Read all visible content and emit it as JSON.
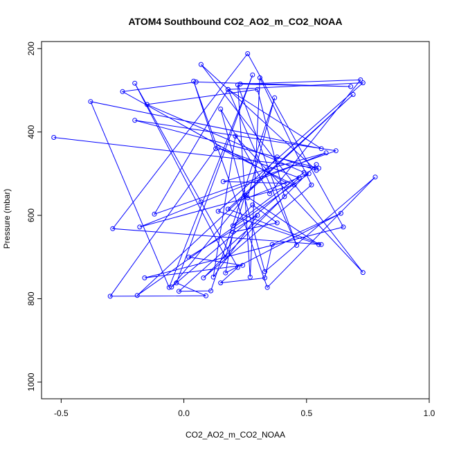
{
  "chart_data": {
    "type": "line",
    "title": "ATOM4 Southbound CO2_AO2_m_CO2_NOAA",
    "xlabel": "CO2_AO2_m_CO2_NOAA",
    "ylabel": "Pressure (mbar)",
    "xlim": [
      -0.58,
      1.0
    ],
    "ylim": [
      1040,
      183
    ],
    "y_reversed": true,
    "x_ticks": [
      -0.5,
      0.0,
      0.5,
      1.0
    ],
    "x_tick_labels": [
      "-0.5",
      "0.0",
      "0.5",
      "1.0"
    ],
    "y_ticks": [
      200,
      400,
      600,
      800,
      1000
    ],
    "y_tick_labels": [
      "200",
      "400",
      "600",
      "800",
      "1000"
    ],
    "grid": false,
    "legend": "none",
    "marker": "open-circle",
    "colors": {
      "series": "#0000ff",
      "axis": "#000000",
      "background": "#ffffff"
    },
    "series": [
      {
        "x": [
          -0.53,
          0.55,
          -0.2,
          0.62,
          -0.12,
          0.18,
          0.56,
          -0.38,
          -0.06,
          0.28,
          -0.03,
          0.09,
          -0.3,
          0.13,
          0.04,
          0.34,
          0.78,
          0.33,
          0.15,
          0.35,
          0.72,
          0.23,
          0.68,
          0.05,
          -0.25,
          0.42,
          0.16,
          0.58,
          -0.18,
          0.45,
          0.14,
          0.47,
          -0.05,
          0.38,
          0.54,
          0.07,
          0.73,
          0.21,
          0.12,
          0.3,
          0.02,
          0.24,
          -0.16,
          0.65,
          0.26,
          -0.29,
          0.56,
          0.18,
          0.69,
          -0.19,
          0.51,
          0.26,
          0.37,
          0.11,
          -0.02,
          0.41,
          0.3,
          -0.15,
          0.49,
          0.2,
          0.28,
          0.38,
          0.2,
          0.17,
          0.64,
          0.36,
          0.33,
          0.15,
          0.22,
          0.07,
          -0.2,
          0.17,
          0.25,
          0.55,
          0.14,
          0.73,
          0.18,
          0.46,
          0.22,
          0.27,
          0.31,
          0.52,
          0.08,
          0.54
        ],
        "y": [
          413,
          487,
          372,
          445,
          597,
          298,
          440,
          327,
          773,
          263,
          762,
          793,
          794,
          440,
          278,
          773,
          508,
          735,
          345,
          548,
          275,
          285,
          291,
          280,
          303,
          523,
          519,
          450,
          628,
          527,
          438,
          510,
          772,
          460,
          492,
          238,
          737,
          410,
          748,
          600,
          700,
          720,
          750,
          628,
          212,
          632,
          670,
          585,
          310,
          792,
          500,
          558,
          318,
          781,
          782,
          555,
          298,
          334,
          497,
          625,
          575,
          618,
          640,
          738,
          595,
          670,
          750,
          762,
          725,
          568,
          283,
          700,
          552,
          670,
          590,
          282,
          298,
          672,
          287,
          748,
          270,
          527,
          750,
          478
        ]
      }
    ]
  }
}
